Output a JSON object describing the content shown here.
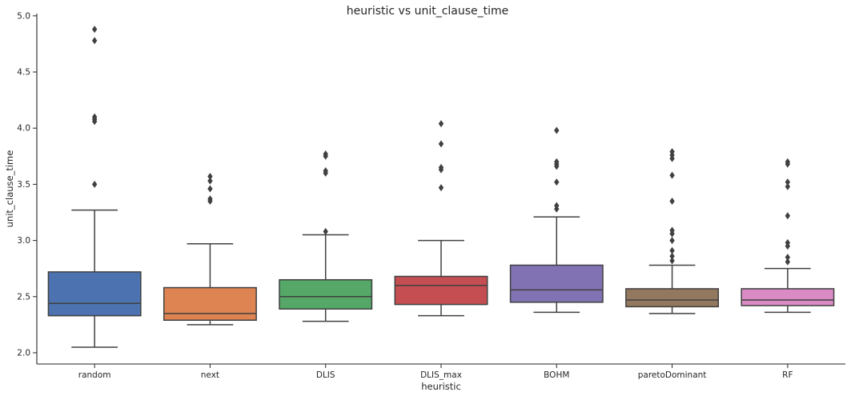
{
  "chart_data": {
    "type": "box",
    "title": "heuristic vs unit_clause_time",
    "xlabel": "heuristic",
    "ylabel": "unit_clause_time",
    "ylim": [
      1.9,
      5.02
    ],
    "yticks": [
      "2.0",
      "2.5",
      "3.0",
      "3.5",
      "4.0",
      "4.5",
      "5.0"
    ],
    "grid": false,
    "categories": [
      "random",
      "next",
      "DLIS",
      "DLIS_max",
      "BOHM",
      "paretoDominant",
      "RF"
    ],
    "colors": [
      "#4c72b0",
      "#dd8452",
      "#55a868",
      "#c44e52",
      "#8172b3",
      "#937860",
      "#da8bc3"
    ],
    "boxes": [
      {
        "category": "random",
        "whisker_low": 2.05,
        "q1": 2.33,
        "median": 2.44,
        "q3": 2.72,
        "whisker_high": 3.27,
        "outliers": [
          3.5,
          4.06,
          4.08,
          4.1,
          4.78,
          4.88
        ]
      },
      {
        "category": "next",
        "whisker_low": 2.25,
        "q1": 2.29,
        "median": 2.35,
        "q3": 2.58,
        "whisker_high": 2.97,
        "outliers": [
          3.35,
          3.37,
          3.46,
          3.53,
          3.57
        ]
      },
      {
        "category": "DLIS",
        "whisker_low": 2.28,
        "q1": 2.39,
        "median": 2.5,
        "q3": 2.65,
        "whisker_high": 3.05,
        "outliers": [
          3.08,
          3.6,
          3.62,
          3.75,
          3.77
        ]
      },
      {
        "category": "DLIS_max",
        "whisker_low": 2.33,
        "q1": 2.43,
        "median": 2.6,
        "q3": 2.68,
        "whisker_high": 3.0,
        "outliers": [
          3.47,
          3.63,
          3.65,
          3.86,
          4.04
        ]
      },
      {
        "category": "BOHM",
        "whisker_low": 2.36,
        "q1": 2.45,
        "median": 2.56,
        "q3": 2.78,
        "whisker_high": 3.21,
        "outliers": [
          3.28,
          3.31,
          3.52,
          3.66,
          3.68,
          3.7,
          3.98
        ]
      },
      {
        "category": "paretoDominant",
        "whisker_low": 2.35,
        "q1": 2.41,
        "median": 2.47,
        "q3": 2.57,
        "whisker_high": 2.78,
        "outliers": [
          2.82,
          2.86,
          2.91,
          3.0,
          3.06,
          3.09,
          3.35,
          3.58,
          3.73,
          3.76,
          3.79
        ]
      },
      {
        "category": "RF",
        "whisker_low": 2.36,
        "q1": 2.42,
        "median": 2.47,
        "q3": 2.57,
        "whisker_high": 2.75,
        "outliers": [
          2.81,
          2.85,
          2.95,
          2.98,
          3.22,
          3.48,
          3.52,
          3.68,
          3.7
        ]
      }
    ]
  }
}
